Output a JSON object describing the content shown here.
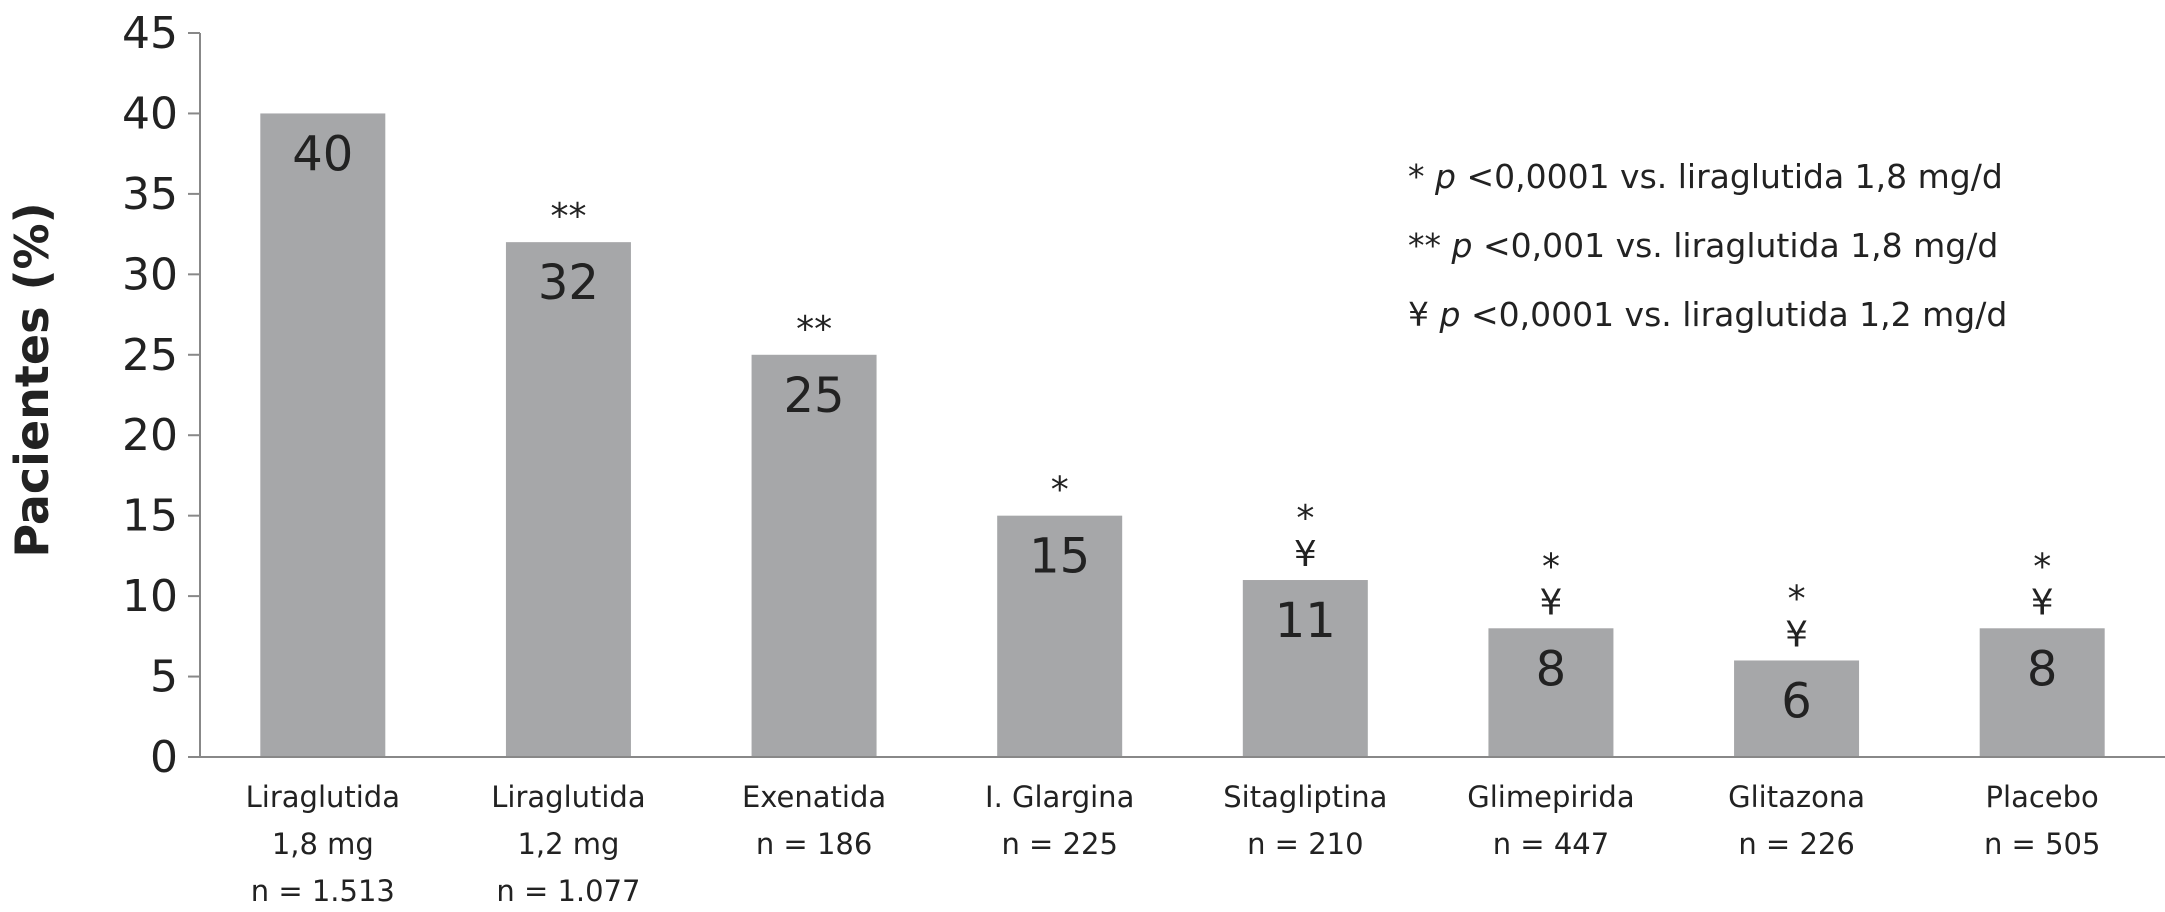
{
  "chart_data": {
    "type": "bar",
    "ylabel": "Pacientes (%)",
    "ylim": [
      0,
      45
    ],
    "yticks": [
      0,
      5,
      10,
      15,
      20,
      25,
      30,
      35,
      40,
      45
    ],
    "grid": false,
    "bar_color": "#a6a7a9",
    "categories": [
      {
        "lines": [
          "Liraglutida",
          "1,8 mg",
          "n = 1.513"
        ],
        "value": 40,
        "value_label": "40",
        "marks": []
      },
      {
        "lines": [
          "Liraglutida",
          "1,2 mg",
          "n = 1.077"
        ],
        "value": 32,
        "value_label": "32",
        "marks": [
          "**"
        ]
      },
      {
        "lines": [
          "Exenatida",
          "n = 186"
        ],
        "value": 25,
        "value_label": "25",
        "marks": [
          "**"
        ]
      },
      {
        "lines": [
          "I. Glargina",
          "n = 225"
        ],
        "value": 15,
        "value_label": "15",
        "marks": [
          "*"
        ]
      },
      {
        "lines": [
          "Sitagliptina",
          "n = 210"
        ],
        "value": 11,
        "value_label": "11",
        "marks": [
          "*",
          "¥"
        ]
      },
      {
        "lines": [
          "Glimepirida",
          "n = 447"
        ],
        "value": 8,
        "value_label": "8",
        "marks": [
          "*",
          "¥"
        ]
      },
      {
        "lines": [
          "Glitazona",
          "n = 226"
        ],
        "value": 6,
        "value_label": "6",
        "marks": [
          "*",
          "¥"
        ]
      },
      {
        "lines": [
          "Placebo",
          "n = 505"
        ],
        "value": 8,
        "value_label": "8",
        "marks": [
          "*",
          "¥"
        ]
      }
    ],
    "legend_position": "top-right",
    "legend": [
      {
        "symbol": "*",
        "p": "p",
        "text": "<0,0001 vs. liraglutida 1,8 mg/d"
      },
      {
        "symbol": "**",
        "p": "p",
        "text": "<0,001 vs. liraglutida 1,8 mg/d"
      },
      {
        "symbol": "¥",
        "p": "p",
        "text": "<0,0001 vs. liraglutida 1,2 mg/d"
      }
    ]
  }
}
